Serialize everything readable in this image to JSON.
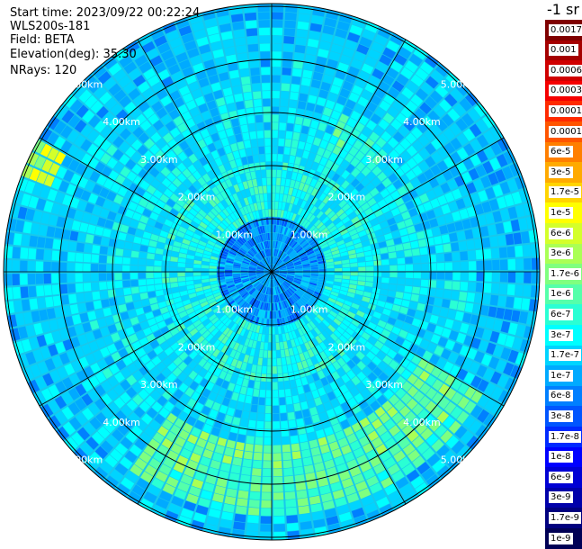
{
  "info": {
    "start_time": "Start time: 2023/09/22 00:22:24",
    "instrument": "WLS200s-181",
    "field": "Field: BETA",
    "elevation": "Elevation(deg): 35.30",
    "nrays": "NRays: 120"
  },
  "colorbar": {
    "title": "-1 sr",
    "levels": [
      {
        "label": "0.0017",
        "color": "#7f0000"
      },
      {
        "label": "0.001",
        "color": "#a50000"
      },
      {
        "label": "0.0006",
        "color": "#d00000"
      },
      {
        "label": "0.0003",
        "color": "#f50000"
      },
      {
        "label": "0.00017",
        "color": "#ff2a00"
      },
      {
        "label": "0.0001",
        "color": "#ff5500"
      },
      {
        "label": "6e-5",
        "color": "#ff7f00"
      },
      {
        "label": "3e-5",
        "color": "#ffaa00"
      },
      {
        "label": "1.7e-5",
        "color": "#ffd400"
      },
      {
        "label": "1e-5",
        "color": "#ffff00"
      },
      {
        "label": "6e-6",
        "color": "#d4ff2a"
      },
      {
        "label": "3e-6",
        "color": "#aaff55"
      },
      {
        "label": "1.7e-6",
        "color": "#7fff7f"
      },
      {
        "label": "1e-6",
        "color": "#55ffaa"
      },
      {
        "label": "6e-7",
        "color": "#2affd4"
      },
      {
        "label": "3e-7",
        "color": "#00ffff"
      },
      {
        "label": "1.7e-7",
        "color": "#00d4ff"
      },
      {
        "label": "1e-7",
        "color": "#00aaff"
      },
      {
        "label": "6e-8",
        "color": "#007fff"
      },
      {
        "label": "3e-8",
        "color": "#0055ff"
      },
      {
        "label": "1.7e-8",
        "color": "#002aff"
      },
      {
        "label": "1e-8",
        "color": "#0000ff"
      },
      {
        "label": "6e-9",
        "color": "#0000d4"
      },
      {
        "label": "3e-9",
        "color": "#0000aa"
      },
      {
        "label": "1.7e-9",
        "color": "#00007f"
      },
      {
        "label": "1e-9",
        "color": "#000055"
      }
    ]
  },
  "range_rings": {
    "labels": [
      "1.00km",
      "2.00km",
      "3.00km",
      "4.00km",
      "5.00km"
    ]
  }
}
